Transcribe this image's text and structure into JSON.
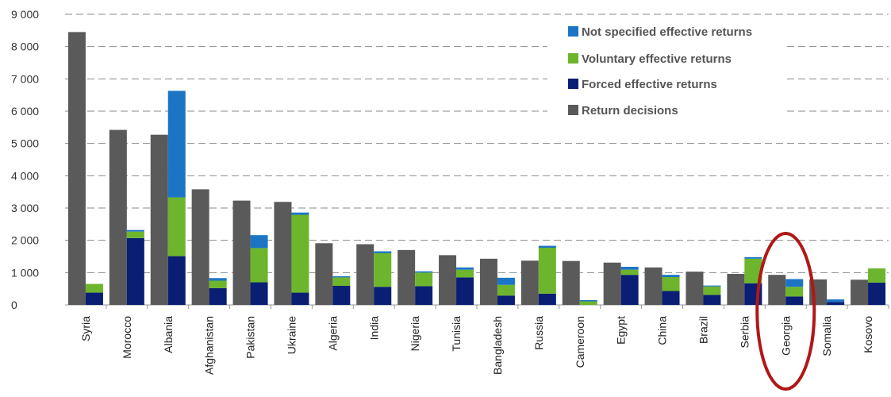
{
  "chart_data": {
    "type": "bar",
    "categories": [
      "Syria",
      "Morocco",
      "Albania",
      "Afghanistan",
      "Pakistan",
      "Ukraine",
      "Algeria",
      "India",
      "Nigeria",
      "Tunisia",
      "Bangladesh",
      "Russia",
      "Cameroon",
      "Egypt",
      "China",
      "Brazil",
      "Serbia",
      "Georgia",
      "Somalia",
      "Kosovo"
    ],
    "ylim": [
      0,
      9000
    ],
    "yticks": [
      "0",
      "1 000",
      "2 000",
      "3 000",
      "4 000",
      "5 000",
      "6 000",
      "7 000",
      "8 000",
      "9 000"
    ],
    "grid": true,
    "legend_position": "top-right",
    "series": [
      {
        "name": "Return decisions",
        "color": "#5a5a5a",
        "group": "decisions",
        "values": [
          8450,
          5420,
          5270,
          3580,
          3230,
          3190,
          1910,
          1880,
          1700,
          1540,
          1430,
          1370,
          1360,
          1310,
          1160,
          1030,
          960,
          930,
          790,
          780
        ]
      },
      {
        "name": "Forced effective returns",
        "color": "#0a1f73",
        "group": "effective",
        "values": [
          380,
          2070,
          1510,
          520,
          700,
          380,
          590,
          560,
          580,
          850,
          290,
          350,
          0,
          930,
          430,
          310,
          670,
          260,
          90,
          690
        ]
      },
      {
        "name": "Voluntary effective returns",
        "color": "#6cb52d",
        "group": "effective",
        "values": [
          270,
          200,
          1820,
          230,
          1060,
          2410,
          260,
          1040,
          420,
          240,
          330,
          1420,
          110,
          160,
          430,
          260,
          760,
          300,
          0,
          440
        ]
      },
      {
        "name": "Not specified effective returns",
        "color": "#1c75c4",
        "group": "effective",
        "values": [
          0,
          50,
          3300,
          80,
          400,
          70,
          40,
          60,
          40,
          70,
          220,
          60,
          40,
          90,
          70,
          30,
          50,
          240,
          80,
          0
        ]
      }
    ],
    "legend_order": [
      "Not specified effective returns",
      "Voluntary effective returns",
      "Forced effective returns",
      "Return decisions"
    ],
    "highlight": {
      "category": "Georgia",
      "shape": "ellipse",
      "color": "#b01818"
    }
  }
}
